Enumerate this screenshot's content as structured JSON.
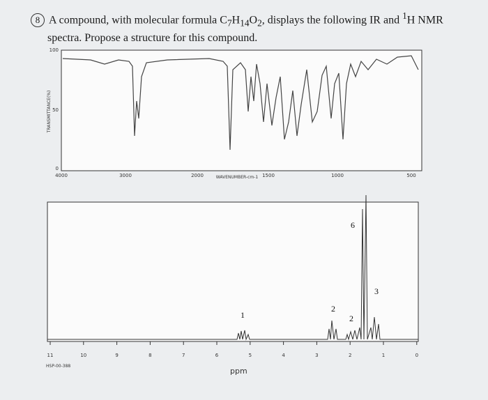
{
  "question": {
    "number": "8",
    "before": "A compound, with molecular formula ",
    "formula": [
      "C",
      "7",
      "H",
      "14",
      "O",
      "2"
    ],
    "after": ", displays the following IR and ",
    "sup": "1",
    "tail": "H NMR",
    "line2": "spectra. Propose a structure for this compound."
  },
  "ir": {
    "y_label": "TRANSMITTANCE(%)",
    "y_ticks": [
      "100",
      "50",
      "0"
    ],
    "x_ticks": [
      "4000",
      "3000",
      "2000",
      "1500",
      "1000",
      "500"
    ],
    "x_label": "WAVENUMBER-cm-1"
  },
  "nmr": {
    "x_ticks": [
      "11",
      "10",
      "9",
      "8",
      "7",
      "6",
      "5",
      "4",
      "3",
      "2",
      "1",
      "0"
    ],
    "code": "HSP-00-388",
    "x_label": "ppm",
    "integrations": [
      "1",
      "2",
      "2",
      "6",
      "3"
    ]
  }
}
